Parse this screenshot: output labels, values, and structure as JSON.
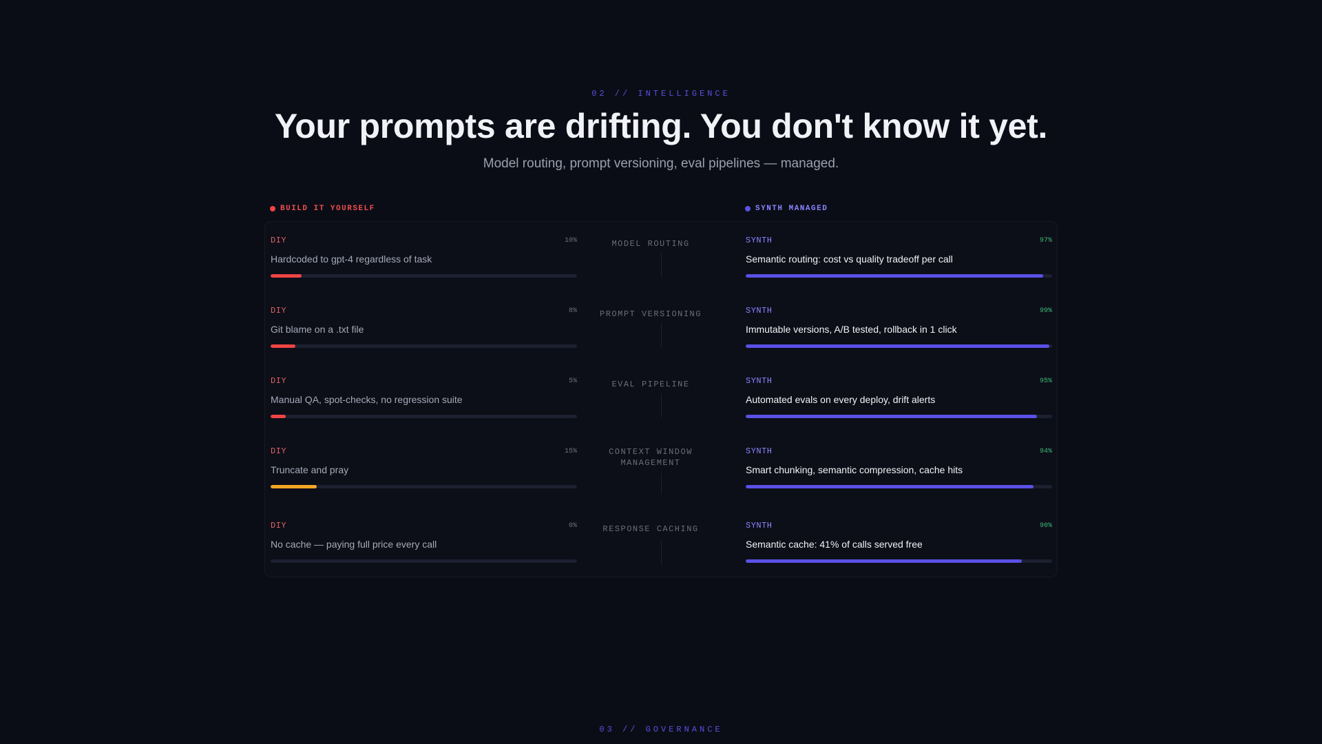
{
  "section": {
    "eyebrow": "02 // INTELLIGENCE",
    "headline": "Your prompts are drifting. You don't know it yet.",
    "subhead": "Model routing, prompt versioning, eval pipelines — managed."
  },
  "columns": {
    "diy_label": "BUILD IT YOURSELF",
    "synth_label": "SYNTH MANAGED"
  },
  "colors": {
    "accent": "#5b50e6",
    "diy_red": "#ef4444",
    "diy_amber": "#f5a623",
    "synth_green": "#3fb975",
    "background": "#0b0d16"
  },
  "rows": [
    {
      "feature": "MODEL ROUTING",
      "diy": {
        "tag": "DIY",
        "percent_label": "10%",
        "percent": 10,
        "text": "Hardcoded to gpt-4 regardless of task",
        "bar_color": "#ef4444"
      },
      "synth": {
        "tag": "SYNTH",
        "percent_label": "97%",
        "percent": 97,
        "text": "Semantic routing: cost vs quality tradeoff per call",
        "bar_color": "#5b50e6"
      }
    },
    {
      "feature": "PROMPT VERSIONING",
      "diy": {
        "tag": "DIY",
        "percent_label": "8%",
        "percent": 8,
        "text": "Git blame on a .txt file",
        "bar_color": "#ef4444"
      },
      "synth": {
        "tag": "SYNTH",
        "percent_label": "99%",
        "percent": 99,
        "text": "Immutable versions, A/B tested, rollback in 1 click",
        "bar_color": "#5b50e6"
      }
    },
    {
      "feature": "EVAL PIPELINE",
      "diy": {
        "tag": "DIY",
        "percent_label": "5%",
        "percent": 5,
        "text": "Manual QA, spot-checks, no regression suite",
        "bar_color": "#ef4444"
      },
      "synth": {
        "tag": "SYNTH",
        "percent_label": "95%",
        "percent": 95,
        "text": "Automated evals on every deploy, drift alerts",
        "bar_color": "#5b50e6"
      }
    },
    {
      "feature": "CONTEXT WINDOW MANAGEMENT",
      "diy": {
        "tag": "DIY",
        "percent_label": "15%",
        "percent": 15,
        "text": "Truncate and pray",
        "bar_color": "#f5a623"
      },
      "synth": {
        "tag": "SYNTH",
        "percent_label": "94%",
        "percent": 94,
        "text": "Smart chunking, semantic compression, cache hits",
        "bar_color": "#5b50e6"
      }
    },
    {
      "feature": "RESPONSE CACHING",
      "diy": {
        "tag": "DIY",
        "percent_label": "0%",
        "percent": 0,
        "text": "No cache — paying full price every call",
        "bar_color": "#ef4444"
      },
      "synth": {
        "tag": "SYNTH",
        "percent_label": "90%",
        "percent": 90,
        "text": "Semantic cache: 41% of calls served free",
        "bar_color": "#5b50e6"
      }
    }
  ],
  "next_section": {
    "eyebrow": "03 // GOVERNANCE"
  }
}
